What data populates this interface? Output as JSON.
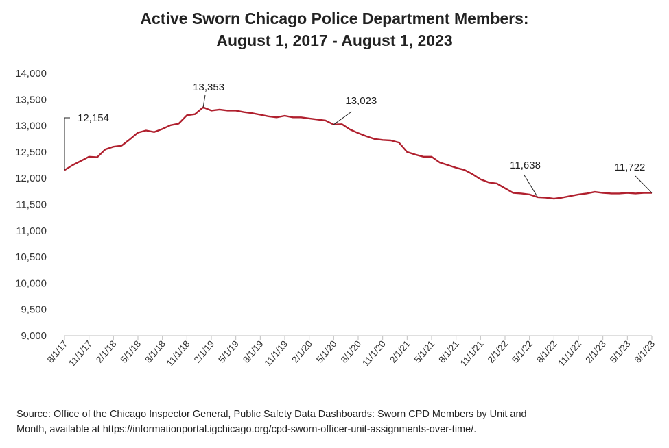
{
  "chart_data": {
    "type": "line",
    "title_line1": "Active Sworn Chicago Police Department Members:",
    "title_line2": "August 1, 2017 - August 1, 2023",
    "xlabel": "",
    "ylabel": "",
    "ylim": [
      9000,
      14000
    ],
    "yticks": [
      "9,000",
      "9,500",
      "10,000",
      "10,500",
      "11,000",
      "11,500",
      "12,000",
      "12,500",
      "13,000",
      "13,500",
      "14,000"
    ],
    "xticks": [
      "8/1/17",
      "11/1/17",
      "2/1/18",
      "5/1/18",
      "8/1/18",
      "11/1/18",
      "2/1/19",
      "5/1/19",
      "8/1/19",
      "11/1/19",
      "2/1/20",
      "5/1/20",
      "8/1/20",
      "11/1/20",
      "2/1/21",
      "5/1/21",
      "8/1/21",
      "11/1/21",
      "2/1/22",
      "5/1/22",
      "8/1/22",
      "11/1/22",
      "2/1/23",
      "5/1/23",
      "8/1/23"
    ],
    "grid": false,
    "line_color": "#b0202e",
    "series": [
      {
        "values": [
          12154,
          12250,
          12330,
          12410,
          12400,
          12550,
          12600,
          12620,
          12740,
          12870,
          12910,
          12880,
          12940,
          13010,
          13040,
          13200,
          13220,
          13353,
          13290,
          13310,
          13290,
          13290,
          13260,
          13240,
          13210,
          13180,
          13160,
          13190,
          13160,
          13160,
          13140,
          13120,
          13100,
          13023,
          13030,
          12930,
          12860,
          12800,
          12750,
          12730,
          12720,
          12680,
          12500,
          12450,
          12410,
          12410,
          12300,
          12250,
          12200,
          12160,
          12080,
          11980,
          11920,
          11900,
          11810,
          11720,
          11710,
          11690,
          11638,
          11630,
          11610,
          11630,
          11660,
          11690,
          11710,
          11740,
          11720,
          11710,
          11710,
          11720,
          11710,
          11720,
          11722
        ]
      }
    ],
    "annotations": [
      {
        "label": "12,154",
        "index": 0
      },
      {
        "label": "13,353",
        "index": 17
      },
      {
        "label": "13,023",
        "index": 33
      },
      {
        "label": "11,638",
        "index": 58
      },
      {
        "label": "11,722",
        "index": 72
      }
    ]
  },
  "source": {
    "line1": "Source: Office of the  Chicago Inspector General, Public Safety Data Dashboards: Sworn CPD Members by Unit and",
    "line2": "Month, available at https://informationportal.igchicago.org/cpd-sworn-officer-unit-assignments-over-time/."
  }
}
